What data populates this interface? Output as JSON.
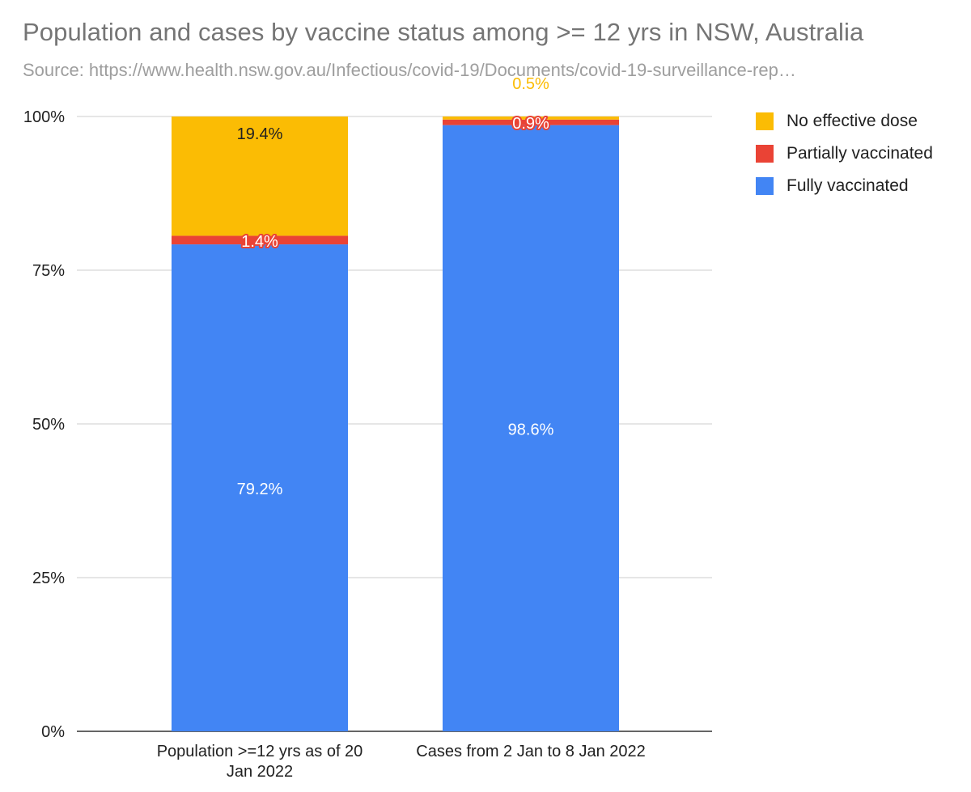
{
  "chart_data": {
    "type": "bar",
    "stacked": true,
    "title": "Population and cases by vaccine status among >= 12 yrs in NSW, Australia",
    "subtitle": "Source: https://www.health.nsw.gov.au/Infectious/covid-19/Documents/covid-19-surveillance-rep…",
    "categories": [
      "Population >=12 yrs as of 20 Jan 2022",
      "Cases from 2 Jan to 8 Jan 2022"
    ],
    "category_label_lines": [
      [
        "Population >=12 yrs as of 20",
        "Jan 2022"
      ],
      [
        "Cases from 2 Jan to 8 Jan 2022"
      ]
    ],
    "series": [
      {
        "name": "Fully vaccinated",
        "color": "#4285f4",
        "values": [
          79.2,
          98.6
        ],
        "labels": [
          "79.2%",
          "98.6%"
        ]
      },
      {
        "name": "Partially vaccinated",
        "color": "#ea4335",
        "values": [
          1.4,
          0.9
        ],
        "labels": [
          "1.4%",
          "0.9%"
        ]
      },
      {
        "name": "No effective dose",
        "color": "#fbbc04",
        "values": [
          19.4,
          0.5
        ],
        "labels": [
          "19.4%",
          "0.5%"
        ]
      }
    ],
    "legend_order": [
      "No effective dose",
      "Partially vaccinated",
      "Fully vaccinated"
    ],
    "legend_position": "right",
    "yticks": [
      "0%",
      "25%",
      "50%",
      "75%",
      "100%"
    ],
    "ylim": [
      0,
      100
    ],
    "grid": true,
    "xlabel": "",
    "ylabel": ""
  }
}
